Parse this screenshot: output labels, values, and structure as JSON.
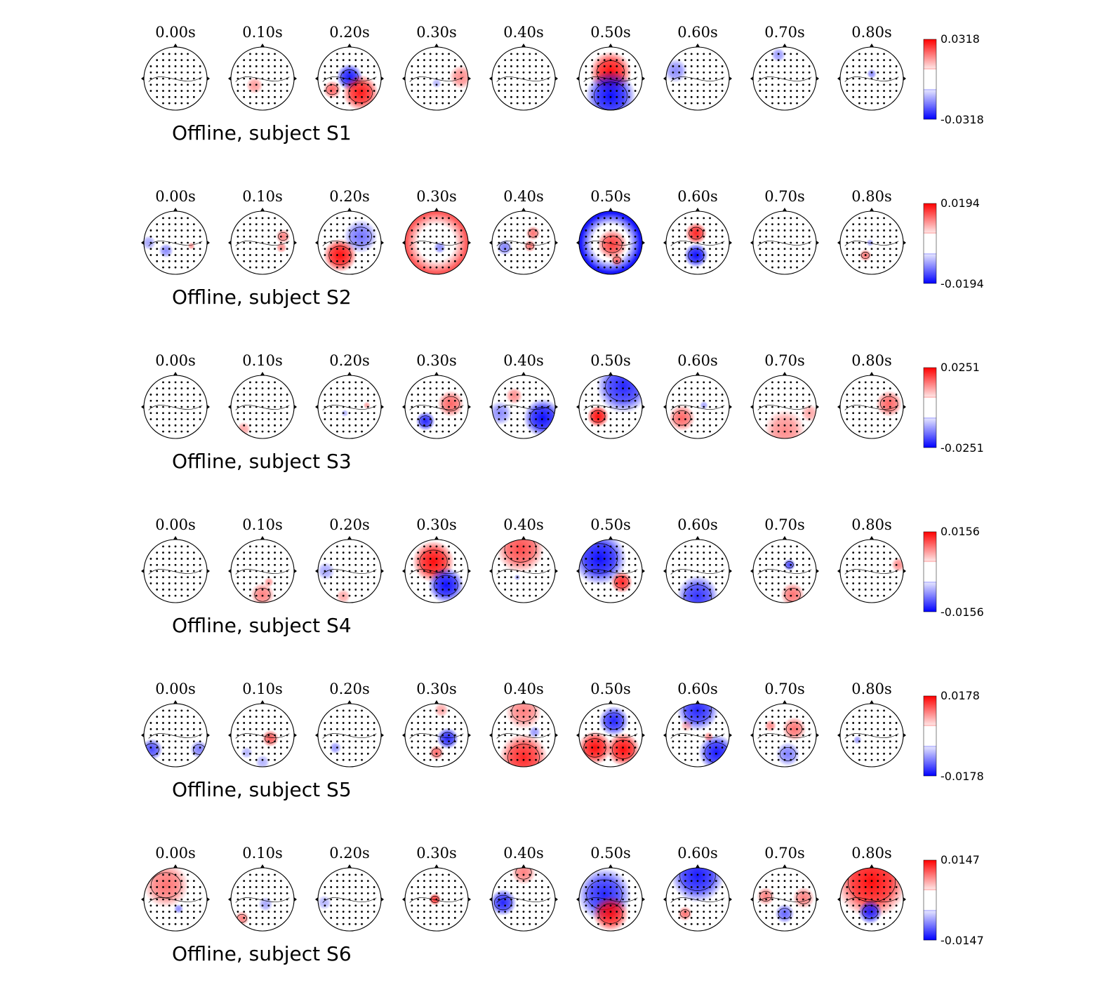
{
  "chart_data": {
    "type": "heatmap",
    "time_labels": [
      "0.00s",
      "0.10s",
      "0.20s",
      "0.30s",
      "0.40s",
      "0.50s",
      "0.60s",
      "0.70s",
      "0.80s"
    ],
    "colormap": {
      "positive": "#ff0000",
      "neutral": "#ffffff",
      "negative": "#0000ff"
    },
    "rows": [
      {
        "title": "Offline, subject S1",
        "vmax": "0.0318",
        "vmin": "-0.0318",
        "max": 0.0318,
        "blobs": [
          [],
          [
            {
              "x": -0.25,
              "y": 0.22,
              "r": 0.14,
              "v": 0.4
            }
          ],
          [
            {
              "x": 0.0,
              "y": -0.05,
              "r": 0.22,
              "v": -0.9
            },
            {
              "x": 0.35,
              "y": 0.45,
              "r": 0.3,
              "v": 0.9
            },
            {
              "x": -0.55,
              "y": 0.35,
              "r": 0.15,
              "v": 0.6
            }
          ],
          [
            {
              "x": 0.78,
              "y": -0.05,
              "r": 0.2,
              "v": 0.45
            },
            {
              "x": 0.0,
              "y": 0.15,
              "r": 0.08,
              "v": -0.3
            }
          ],
          [],
          [
            {
              "x": 0.0,
              "y": -0.2,
              "r": 0.35,
              "v": 0.95
            },
            {
              "x": 0.0,
              "y": 0.55,
              "r": 0.42,
              "v": -0.95
            }
          ],
          [
            {
              "x": -0.7,
              "y": -0.25,
              "r": 0.2,
              "v": -0.45
            }
          ],
          [
            {
              "x": -0.2,
              "y": -0.75,
              "r": 0.12,
              "v": -0.4
            }
          ],
          [
            {
              "x": 0.0,
              "y": -0.15,
              "r": 0.08,
              "v": -0.45
            }
          ]
        ]
      },
      {
        "title": "Offline, subject S2",
        "vmax": "0.0194",
        "vmin": "-0.0194",
        "max": 0.0194,
        "blobs": [
          [
            {
              "x": -0.3,
              "y": 0.25,
              "r": 0.12,
              "v": -0.45
            },
            {
              "x": -0.85,
              "y": 0.0,
              "r": 0.12,
              "v": -0.35
            },
            {
              "x": 0.5,
              "y": 0.1,
              "r": 0.06,
              "v": 0.4
            }
          ],
          [
            {
              "x": 0.65,
              "y": -0.2,
              "r": 0.12,
              "v": 0.5
            },
            {
              "x": 0.6,
              "y": 0.15,
              "r": 0.09,
              "v": 0.45
            }
          ],
          [
            {
              "x": -0.3,
              "y": 0.4,
              "r": 0.28,
              "v": 0.95
            },
            {
              "x": 0.35,
              "y": -0.2,
              "r": 0.28,
              "v": -0.55
            }
          ],
          [
            {
              "x": 0.0,
              "y": 0.0,
              "r": 0.9,
              "v": 0.7,
              "ring": true
            },
            {
              "x": 0.1,
              "y": 0.15,
              "r": 0.1,
              "v": -0.45
            }
          ],
          [
            {
              "x": 0.3,
              "y": -0.3,
              "r": 0.12,
              "v": 0.55
            },
            {
              "x": 0.2,
              "y": 0.1,
              "r": 0.1,
              "v": 0.55
            },
            {
              "x": -0.6,
              "y": 0.15,
              "r": 0.13,
              "v": -0.5
            }
          ],
          [
            {
              "x": 0.0,
              "y": 0.0,
              "r": 0.9,
              "v": -1.0,
              "ring": true
            },
            {
              "x": 0.05,
              "y": 0.05,
              "r": 0.25,
              "v": 0.75
            },
            {
              "x": 0.2,
              "y": 0.55,
              "r": 0.1,
              "v": 0.6
            }
          ],
          [
            {
              "x": -0.05,
              "y": -0.3,
              "r": 0.18,
              "v": 0.85
            },
            {
              "x": -0.05,
              "y": 0.4,
              "r": 0.2,
              "v": -0.95
            }
          ],
          [],
          [
            {
              "x": -0.2,
              "y": 0.4,
              "r": 0.1,
              "v": 0.55
            },
            {
              "x": -0.05,
              "y": 0.0,
              "r": 0.06,
              "v": -0.35
            }
          ]
        ]
      },
      {
        "title": "Offline, subject S3",
        "vmax": "0.0251",
        "vmin": "-0.0251",
        "max": 0.0251,
        "blobs": [
          [],
          [
            {
              "x": -0.6,
              "y": 0.7,
              "r": 0.12,
              "v": 0.35
            }
          ],
          [
            {
              "x": 0.55,
              "y": -0.05,
              "r": 0.06,
              "v": 0.35
            },
            {
              "x": -0.15,
              "y": 0.2,
              "r": 0.06,
              "v": -0.3
            }
          ],
          [
            {
              "x": 0.45,
              "y": -0.1,
              "r": 0.22,
              "v": 0.6
            },
            {
              "x": -0.35,
              "y": 0.45,
              "r": 0.16,
              "v": -0.85
            }
          ],
          [
            {
              "x": 0.6,
              "y": 0.35,
              "r": 0.32,
              "v": -0.95
            },
            {
              "x": -0.3,
              "y": -0.35,
              "r": 0.14,
              "v": 0.45
            },
            {
              "x": -0.75,
              "y": 0.2,
              "r": 0.2,
              "v": -0.45
            }
          ],
          [
            {
              "x": 0.4,
              "y": -0.65,
              "r": 0.45,
              "v": -0.85
            },
            {
              "x": -0.4,
              "y": 0.3,
              "r": 0.18,
              "v": 0.95
            }
          ],
          [
            {
              "x": -0.5,
              "y": 0.35,
              "r": 0.22,
              "v": 0.6
            },
            {
              "x": 0.2,
              "y": -0.05,
              "r": 0.07,
              "v": -0.35
            }
          ],
          [
            {
              "x": 0.0,
              "y": 0.75,
              "r": 0.35,
              "v": 0.45
            },
            {
              "x": 0.8,
              "y": 0.2,
              "r": 0.15,
              "v": 0.35
            }
          ],
          [
            {
              "x": 0.55,
              "y": -0.1,
              "r": 0.22,
              "v": 0.6
            }
          ]
        ]
      },
      {
        "title": "Offline, subject S4",
        "vmax": "0.0156",
        "vmin": "-0.0156",
        "max": 0.0156,
        "blobs": [
          [],
          [
            {
              "x": 0.0,
              "y": 0.75,
              "r": 0.2,
              "v": 0.5
            },
            {
              "x": 0.2,
              "y": 0.35,
              "r": 0.08,
              "v": 0.4
            }
          ],
          [
            {
              "x": -0.75,
              "y": 0.0,
              "r": 0.15,
              "v": -0.35
            },
            {
              "x": -0.2,
              "y": 0.8,
              "r": 0.12,
              "v": 0.35
            }
          ],
          [
            {
              "x": -0.1,
              "y": -0.3,
              "r": 0.35,
              "v": 0.95
            },
            {
              "x": 0.3,
              "y": 0.45,
              "r": 0.3,
              "v": -0.95
            }
          ],
          [
            {
              "x": -0.1,
              "y": -0.7,
              "r": 0.4,
              "v": 0.7
            },
            {
              "x": -0.2,
              "y": 0.2,
              "r": 0.05,
              "v": -0.35
            }
          ],
          [
            {
              "x": -0.35,
              "y": -0.4,
              "r": 0.45,
              "v": -0.95
            },
            {
              "x": 0.35,
              "y": 0.35,
              "r": 0.18,
              "v": 0.85
            }
          ],
          [
            {
              "x": 0.0,
              "y": 0.8,
              "r": 0.35,
              "v": -0.8
            }
          ],
          [
            {
              "x": 0.15,
              "y": -0.2,
              "r": 0.1,
              "v": -0.7
            },
            {
              "x": 0.25,
              "y": 0.75,
              "r": 0.2,
              "v": 0.55
            }
          ],
          [
            {
              "x": 0.85,
              "y": -0.2,
              "r": 0.12,
              "v": 0.45
            }
          ]
        ]
      },
      {
        "title": "Offline, subject S5",
        "vmax": "0.0178",
        "vmin": "-0.0178",
        "max": 0.0178,
        "blobs": [
          [
            {
              "x": -0.75,
              "y": 0.45,
              "r": 0.18,
              "v": -0.7
            },
            {
              "x": 0.75,
              "y": 0.45,
              "r": 0.15,
              "v": -0.5
            }
          ],
          [
            {
              "x": 0.25,
              "y": 0.1,
              "r": 0.14,
              "v": 0.65
            },
            {
              "x": 0.0,
              "y": 0.85,
              "r": 0.12,
              "v": -0.3
            },
            {
              "x": -0.5,
              "y": 0.55,
              "r": 0.1,
              "v": -0.3
            }
          ],
          [
            {
              "x": -0.45,
              "y": 0.4,
              "r": 0.1,
              "v": -0.4
            }
          ],
          [
            {
              "x": 0.35,
              "y": 0.1,
              "r": 0.18,
              "v": -0.85
            },
            {
              "x": 0.0,
              "y": 0.55,
              "r": 0.12,
              "v": 0.6
            },
            {
              "x": 0.15,
              "y": -0.8,
              "r": 0.12,
              "v": 0.35
            }
          ],
          [
            {
              "x": 0.0,
              "y": 0.7,
              "r": 0.4,
              "v": 0.85
            },
            {
              "x": 0.0,
              "y": -0.75,
              "r": 0.3,
              "v": 0.5
            },
            {
              "x": 0.35,
              "y": -0.1,
              "r": 0.1,
              "v": -0.4
            }
          ],
          [
            {
              "x": 0.1,
              "y": -0.45,
              "r": 0.25,
              "v": -0.85
            },
            {
              "x": -0.5,
              "y": 0.4,
              "r": 0.28,
              "v": 0.95
            },
            {
              "x": 0.4,
              "y": 0.45,
              "r": 0.28,
              "v": 0.95
            }
          ],
          [
            {
              "x": 0.0,
              "y": -0.8,
              "r": 0.35,
              "v": -0.85
            },
            {
              "x": 0.6,
              "y": 0.55,
              "r": 0.3,
              "v": -0.9
            },
            {
              "x": 0.35,
              "y": 0.05,
              "r": 0.08,
              "v": 0.45
            },
            {
              "x": -0.35,
              "y": -0.3,
              "r": 0.1,
              "v": 0.3
            }
          ],
          [
            {
              "x": 0.3,
              "y": -0.2,
              "r": 0.2,
              "v": 0.55
            },
            {
              "x": -0.45,
              "y": -0.3,
              "r": 0.1,
              "v": 0.45
            },
            {
              "x": 0.1,
              "y": 0.6,
              "r": 0.2,
              "v": -0.5
            }
          ],
          [
            {
              "x": -0.45,
              "y": 0.15,
              "r": 0.07,
              "v": -0.4
            }
          ]
        ]
      },
      {
        "title": "Offline, subject S6",
        "vmax": "0.0147",
        "vmin": "-0.0147",
        "max": 0.0147,
        "blobs": [
          [
            {
              "x": -0.3,
              "y": -0.45,
              "r": 0.38,
              "v": 0.55
            },
            {
              "x": 0.1,
              "y": 0.3,
              "r": 0.08,
              "v": -0.45
            }
          ],
          [
            {
              "x": -0.65,
              "y": 0.6,
              "r": 0.12,
              "v": 0.5
            },
            {
              "x": 0.1,
              "y": 0.15,
              "r": 0.12,
              "v": -0.35
            }
          ],
          [
            {
              "x": -0.8,
              "y": 0.1,
              "r": 0.12,
              "v": -0.3
            }
          ],
          [
            {
              "x": -0.05,
              "y": 0.0,
              "r": 0.1,
              "v": 0.8
            }
          ],
          [
            {
              "x": -0.65,
              "y": 0.1,
              "r": 0.22,
              "v": -0.85
            },
            {
              "x": 0.0,
              "y": -0.85,
              "r": 0.2,
              "v": 0.5
            }
          ],
          [
            {
              "x": -0.2,
              "y": -0.15,
              "r": 0.45,
              "v": -0.85
            },
            {
              "x": 0.0,
              "y": 0.45,
              "r": 0.3,
              "v": 0.9
            }
          ],
          [
            {
              "x": 0.0,
              "y": -0.75,
              "r": 0.45,
              "v": -0.9
            },
            {
              "x": -0.4,
              "y": 0.45,
              "r": 0.12,
              "v": 0.55
            }
          ],
          [
            {
              "x": 0.0,
              "y": 0.45,
              "r": 0.16,
              "v": -0.6
            },
            {
              "x": -0.6,
              "y": -0.1,
              "r": 0.15,
              "v": 0.5
            },
            {
              "x": 0.6,
              "y": -0.05,
              "r": 0.18,
              "v": 0.5
            }
          ],
          [
            {
              "x": 0.0,
              "y": -0.55,
              "r": 0.6,
              "v": 0.95
            },
            {
              "x": -0.05,
              "y": 0.4,
              "r": 0.2,
              "v": -0.85
            }
          ]
        ]
      }
    ]
  }
}
